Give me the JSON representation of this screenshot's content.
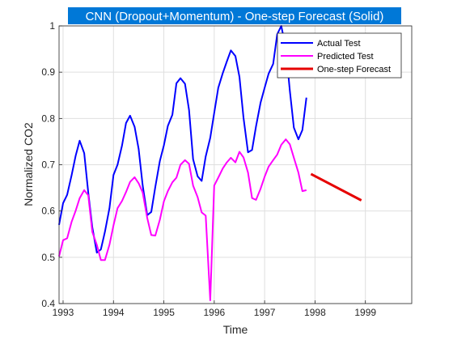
{
  "chart_data": {
    "type": "line",
    "title": "CNN (Dropout+Momentum) - One-step Forecast (Solid)",
    "xlabel": "Time",
    "ylabel": "Normalized CO2",
    "xlim": [
      1992.92,
      1999.92
    ],
    "ylim": [
      0.4,
      1.0
    ],
    "xticks": [
      1993,
      1994,
      1995,
      1996,
      1997,
      1998,
      1999
    ],
    "xtick_labels": [
      "1993",
      "1994",
      "1995",
      "1996",
      "1997",
      "1998",
      "1999"
    ],
    "yticks": [
      0.4,
      0.5,
      0.6,
      0.7,
      0.8,
      0.9,
      1.0
    ],
    "ytick_labels": [
      "0.4",
      "0.5",
      "0.6",
      "0.7",
      "0.8",
      "0.9",
      "1"
    ],
    "grid": true,
    "legend_position": "top-right",
    "series": [
      {
        "name": "Actual Test",
        "color": "#0000ff",
        "x": [
          1992.92,
          1993.0,
          1993.08,
          1993.17,
          1993.25,
          1993.33,
          1993.42,
          1993.5,
          1993.58,
          1993.67,
          1993.75,
          1993.83,
          1993.92,
          1994.0,
          1994.08,
          1994.17,
          1994.25,
          1994.33,
          1994.42,
          1994.5,
          1994.58,
          1994.67,
          1994.75,
          1994.83,
          1994.92,
          1995.0,
          1995.08,
          1995.17,
          1995.25,
          1995.33,
          1995.42,
          1995.5,
          1995.58,
          1995.67,
          1995.75,
          1995.83,
          1995.92,
          1996.0,
          1996.08,
          1996.17,
          1996.25,
          1996.33,
          1996.42,
          1996.5,
          1996.58,
          1996.67,
          1996.75,
          1996.83,
          1996.92,
          1997.0,
          1997.08,
          1997.17,
          1997.25,
          1997.33,
          1997.42,
          1997.5,
          1997.58,
          1997.67,
          1997.75,
          1997.83
        ],
        "values": [
          0.57,
          0.617,
          0.635,
          0.678,
          0.72,
          0.752,
          0.725,
          0.64,
          0.565,
          0.51,
          0.517,
          0.555,
          0.606,
          0.678,
          0.7,
          0.742,
          0.79,
          0.806,
          0.782,
          0.734,
          0.655,
          0.591,
          0.598,
          0.652,
          0.708,
          0.742,
          0.784,
          0.808,
          0.876,
          0.887,
          0.875,
          0.818,
          0.712,
          0.675,
          0.665,
          0.718,
          0.758,
          0.812,
          0.866,
          0.898,
          0.923,
          0.947,
          0.935,
          0.89,
          0.802,
          0.727,
          0.732,
          0.783,
          0.834,
          0.866,
          0.897,
          0.918,
          0.982,
          1.0,
          0.952,
          0.86,
          0.78,
          0.755,
          0.775,
          0.845
        ]
      },
      {
        "name": "Predicted Test",
        "color": "#ff00ff",
        "x": [
          1992.92,
          1993.0,
          1993.08,
          1993.17,
          1993.25,
          1993.33,
          1993.42,
          1993.5,
          1993.58,
          1993.67,
          1993.75,
          1993.83,
          1993.92,
          1994.0,
          1994.08,
          1994.17,
          1994.25,
          1994.33,
          1994.42,
          1994.5,
          1994.58,
          1994.67,
          1994.75,
          1994.83,
          1994.92,
          1995.0,
          1995.08,
          1995.17,
          1995.25,
          1995.33,
          1995.42,
          1995.5,
          1995.58,
          1995.67,
          1995.75,
          1995.83,
          1995.92,
          1996.0,
          1996.08,
          1996.17,
          1996.25,
          1996.33,
          1996.42,
          1996.5,
          1996.58,
          1996.67,
          1996.75,
          1996.83,
          1996.92,
          1997.0,
          1997.08,
          1997.17,
          1997.25,
          1997.33,
          1997.42,
          1997.5,
          1997.58,
          1997.67,
          1997.75,
          1997.83
        ],
        "values": [
          0.502,
          0.537,
          0.541,
          0.577,
          0.601,
          0.628,
          0.645,
          0.634,
          0.555,
          0.527,
          0.494,
          0.494,
          0.527,
          0.569,
          0.606,
          0.622,
          0.641,
          0.663,
          0.673,
          0.66,
          0.64,
          0.585,
          0.548,
          0.547,
          0.581,
          0.621,
          0.643,
          0.662,
          0.672,
          0.7,
          0.71,
          0.702,
          0.655,
          0.63,
          0.597,
          0.59,
          0.407,
          0.655,
          0.672,
          0.692,
          0.705,
          0.715,
          0.705,
          0.728,
          0.716,
          0.683,
          0.628,
          0.624,
          0.648,
          0.674,
          0.696,
          0.71,
          0.722,
          0.743,
          0.755,
          0.744,
          0.715,
          0.683,
          0.643,
          0.645
        ]
      },
      {
        "name": "One-step Forecast",
        "color": "#e60000",
        "x": [
          1997.92,
          1998.92
        ],
        "values": [
          0.68,
          0.623
        ]
      }
    ]
  }
}
